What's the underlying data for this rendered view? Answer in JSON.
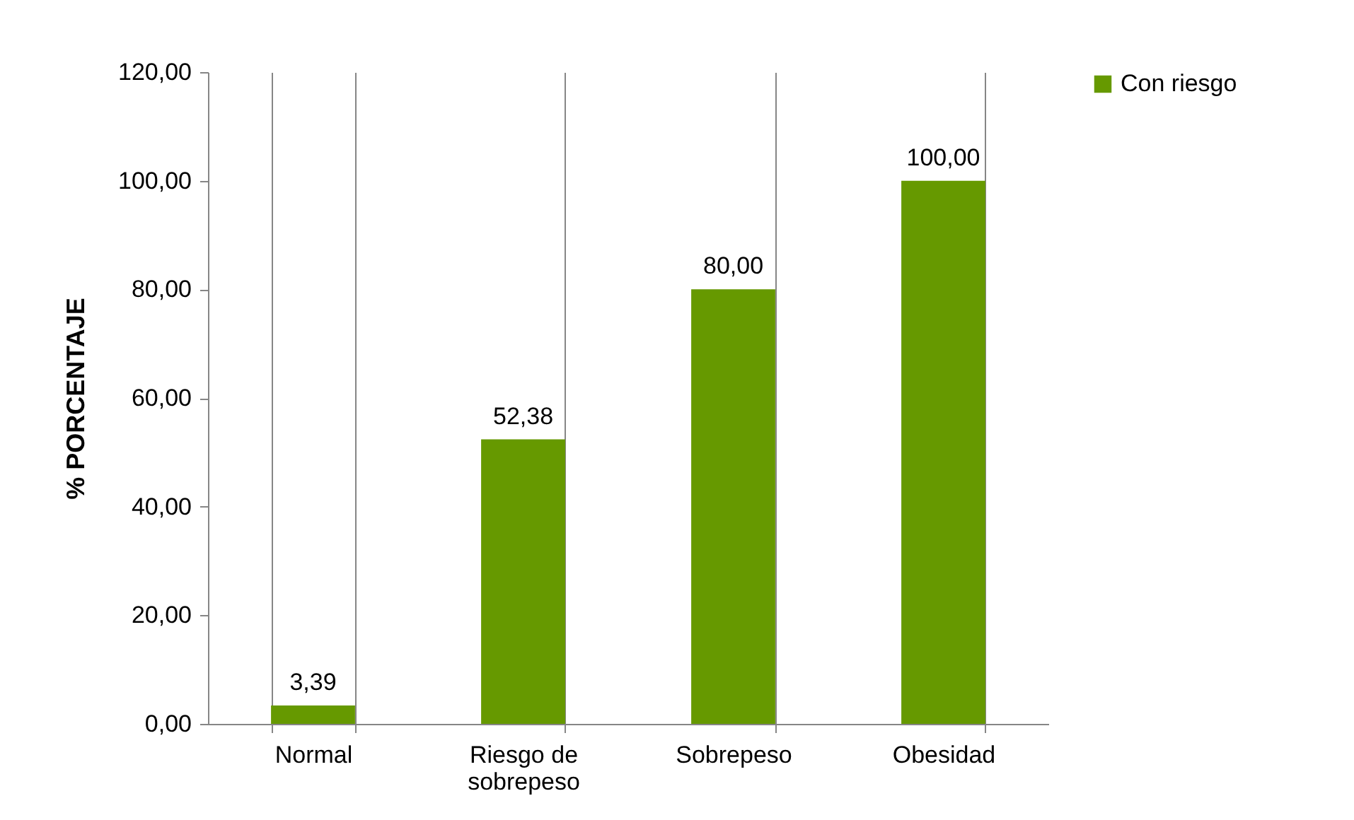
{
  "chart_data": {
    "type": "bar",
    "ylabel": "% PORCENTAJE",
    "categories": [
      "Normal",
      "Riesgo de\nsobrepeso",
      "Sobrepeso",
      "Obesidad"
    ],
    "series": [
      {
        "name": "Con riesgo",
        "color": "#669900",
        "values": [
          3.39,
          52.38,
          80,
          100
        ],
        "value_labels": [
          "3,39",
          "52,38",
          "80,00",
          "100,00"
        ]
      }
    ],
    "ylim": [
      0,
      120
    ],
    "yticks": [
      {
        "value": 0,
        "label": "0,00"
      },
      {
        "value": 20,
        "label": "20,00"
      },
      {
        "value": 40,
        "label": "40,00"
      },
      {
        "value": 60,
        "label": "60,00"
      },
      {
        "value": 80,
        "label": "80,00"
      },
      {
        "value": 100,
        "label": "100,00"
      },
      {
        "value": 120,
        "label": "120,00"
      }
    ],
    "grid": "x",
    "legend": "right"
  }
}
